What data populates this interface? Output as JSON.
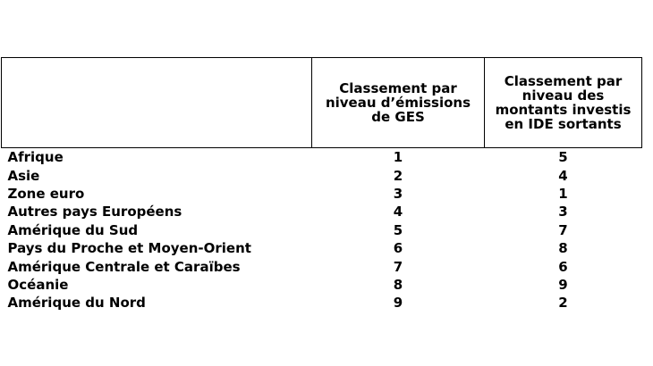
{
  "table": {
    "headers": [
      "",
      "Classement par niveau d’émissions de GES",
      "Classement par niveau des montants investis en IDE sortants"
    ],
    "rows": [
      {
        "region": "Afrique",
        "ges_rank": "1",
        "ide_rank": "5"
      },
      {
        "region": "Asie",
        "ges_rank": "2",
        "ide_rank": "4"
      },
      {
        "region": "Zone euro",
        "ges_rank": "3",
        "ide_rank": "1"
      },
      {
        "region": "Autres pays Européens",
        "ges_rank": "4",
        "ide_rank": "3"
      },
      {
        "region": "Amérique du Sud",
        "ges_rank": "5",
        "ide_rank": "7"
      },
      {
        "region": "Pays du Proche et Moyen-Orient",
        "ges_rank": "6",
        "ide_rank": "8"
      },
      {
        "region": "Amérique Centrale et Caraïbes",
        "ges_rank": "7",
        "ide_rank": "6"
      },
      {
        "region": "Océanie",
        "ges_rank": "8",
        "ide_rank": "9"
      },
      {
        "region": "Amérique du Nord",
        "ges_rank": "9",
        "ide_rank": "2"
      }
    ]
  }
}
